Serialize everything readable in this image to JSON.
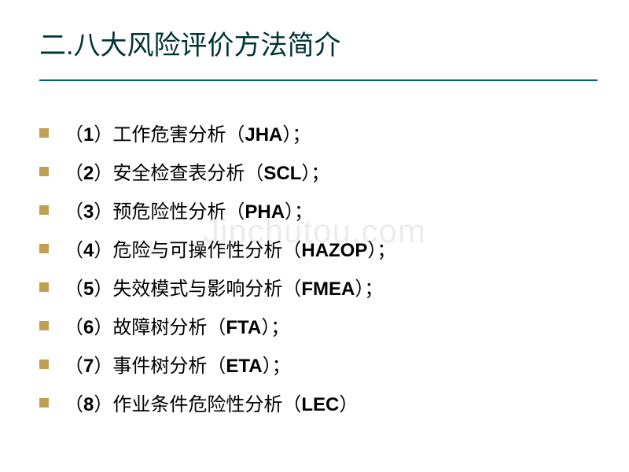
{
  "title": "二.八大风险评价方法简介",
  "watermark": "Jinchutou.com",
  "items": [
    {
      "prefix": "（",
      "num": "1",
      "mid": "）工作危害分析（",
      "abbr": "JHA",
      "suffix": "）；"
    },
    {
      "prefix": "（",
      "num": "2",
      "mid": "）安全检查表分析（",
      "abbr": "SCL",
      "suffix": "）；"
    },
    {
      "prefix": "（",
      "num": "3",
      "mid": "）预危险性分析（",
      "abbr": "PHA",
      "suffix": "）；"
    },
    {
      "prefix": "（",
      "num": "4",
      "mid": "）危险与可操作性分析（",
      "abbr": "HAZOP",
      "suffix": "）；"
    },
    {
      "prefix": "（",
      "num": "5",
      "mid": "）失效模式与影响分析（",
      "abbr": "FMEA",
      "suffix": "）；"
    },
    {
      "prefix": "（",
      "num": "6",
      "mid": "）故障树分析（",
      "abbr": "FTA",
      "suffix": "）；"
    },
    {
      "prefix": "（",
      "num": "7",
      "mid": "）事件树分析（",
      "abbr": "ETA",
      "suffix": "）；"
    },
    {
      "prefix": "（",
      "num": "8",
      "mid": "）作业条件危险性分析（",
      "abbr": "LEC",
      "suffix": "）"
    }
  ],
  "colors": {
    "title_color": "#003333",
    "underline_color": "#006666",
    "bullet_color": "#c0a050",
    "text_color": "#000000",
    "watermark_color": "#e0e0e0",
    "background": "#ffffff"
  },
  "typography": {
    "title_fontsize": 34,
    "item_fontsize": 24,
    "watermark_fontsize": 42
  }
}
